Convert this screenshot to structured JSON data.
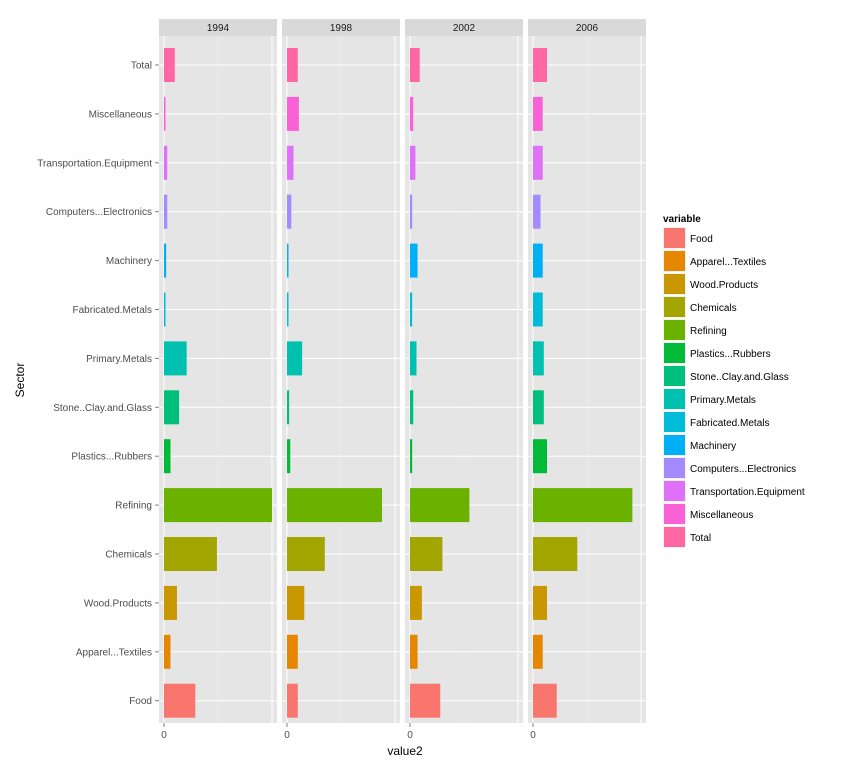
{
  "chart_data": {
    "type": "bar",
    "orientation": "horizontal",
    "facets": [
      "1994",
      "1998",
      "2002",
      "2006"
    ],
    "categories": [
      "Food",
      "Apparel...Textiles",
      "Wood.Products",
      "Chemicals",
      "Refining",
      "Plastics...Rubbers",
      "Stone..Clay.and.Glass",
      "Primary.Metals",
      "Fabricated.Metals",
      "Machinery",
      "Computers...Electronics",
      "Transportation.Equipment",
      "Miscellaneous",
      "Total"
    ],
    "colors": [
      "#F8766D",
      "#E58700",
      "#C99800",
      "#A3A500",
      "#6BB100",
      "#00BA38",
      "#00BF7D",
      "#00C0AF",
      "#00BCD8",
      "#00B0F6",
      "#A58AFF",
      "#DF70F8",
      "#FB61D7",
      "#FF67A4"
    ],
    "series": [
      {
        "name": "1994",
        "values": [
          0.29,
          0.06,
          0.12,
          0.49,
          1.0,
          0.06,
          0.14,
          0.21,
          0.01,
          0.02,
          0.03,
          0.03,
          0.01,
          0.1
        ]
      },
      {
        "name": "1998",
        "values": [
          0.1,
          0.1,
          0.16,
          0.35,
          0.88,
          0.03,
          0.02,
          0.14,
          0.01,
          0.01,
          0.04,
          0.06,
          0.11,
          0.1
        ]
      },
      {
        "name": "2002",
        "values": [
          0.28,
          0.07,
          0.11,
          0.3,
          0.55,
          0.02,
          0.03,
          0.06,
          0.02,
          0.07,
          0.02,
          0.05,
          0.03,
          0.09
        ]
      },
      {
        "name": "2006",
        "values": [
          0.22,
          0.09,
          0.13,
          0.41,
          0.92,
          0.13,
          0.1,
          0.1,
          0.09,
          0.09,
          0.07,
          0.09,
          0.09,
          0.13
        ]
      }
    ],
    "xlabel": "value2",
    "ylabel": "Sector",
    "xticks": [
      "0"
    ],
    "legend": {
      "title": "variable",
      "placement": "right"
    },
    "grid": true
  }
}
